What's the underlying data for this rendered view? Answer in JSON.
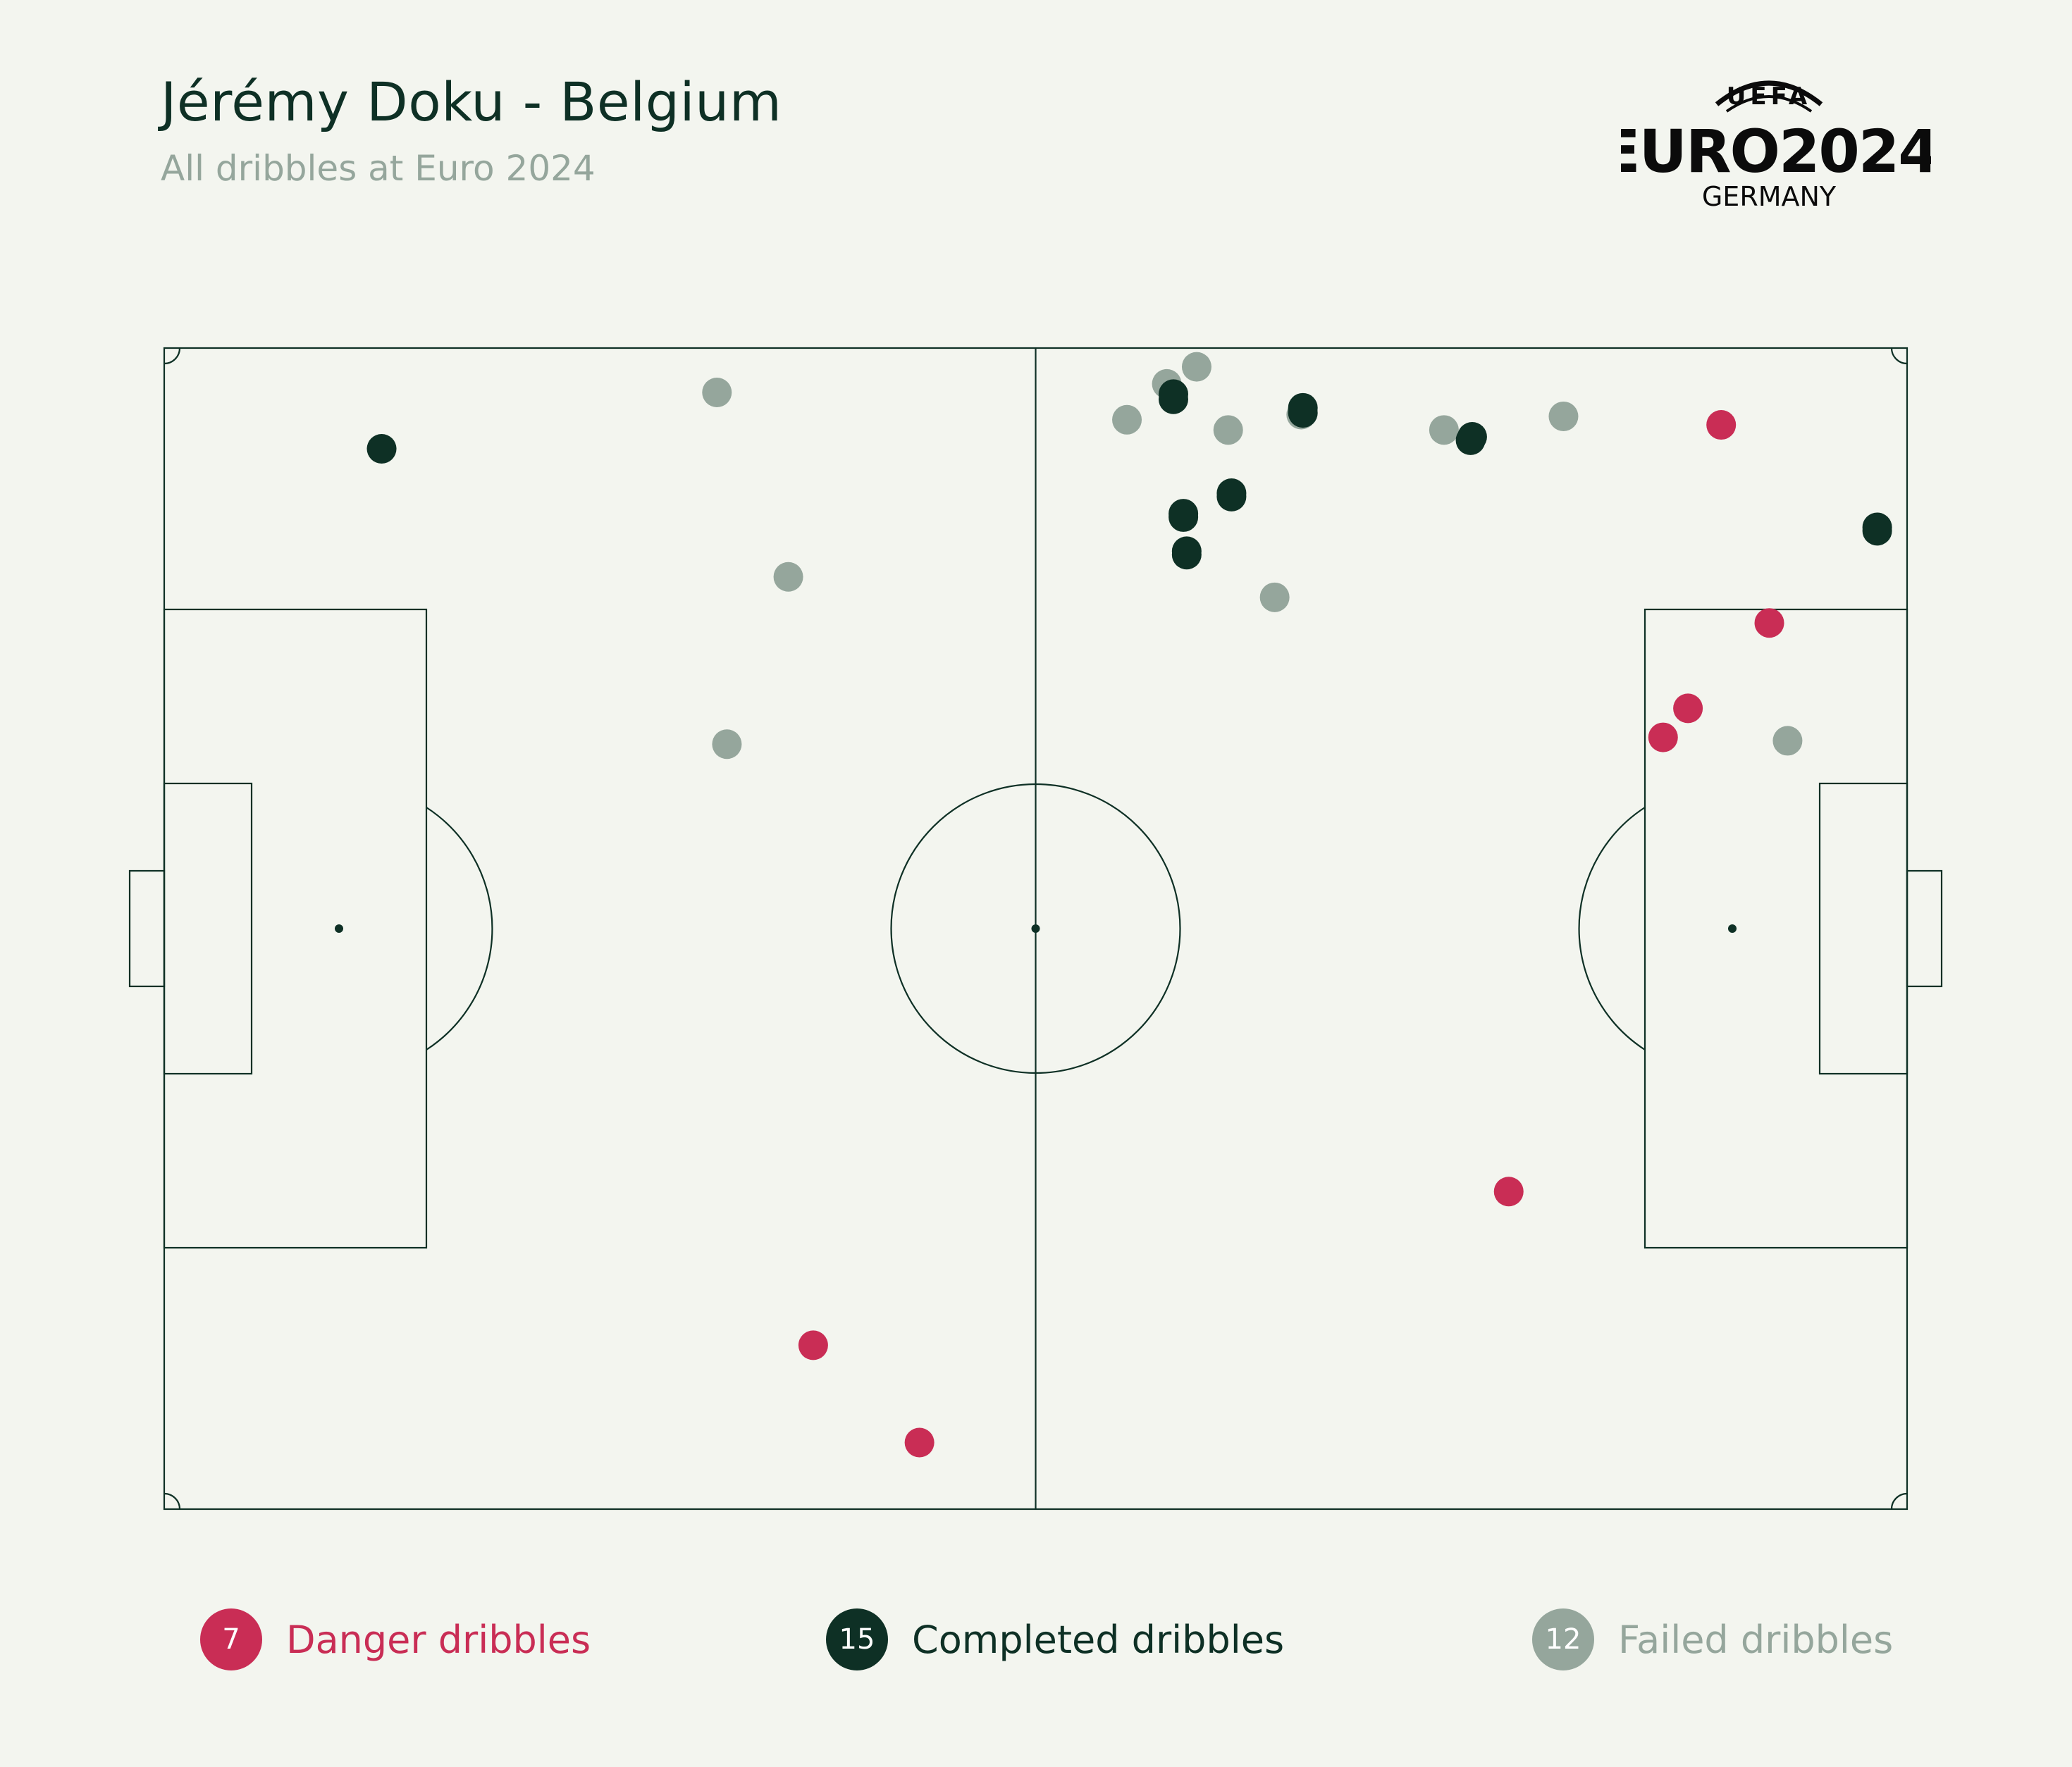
{
  "header": {
    "title": "Jérémy Doku - Belgium",
    "subtitle": "All dribbles at Euro 2024"
  },
  "logo": {
    "uefa": "UEFA",
    "euro": "EURO2024",
    "country": "GERMANY"
  },
  "colors": {
    "background": "#f3f5ef",
    "lines": "#0e3025",
    "danger": "#c92d55",
    "completed": "#0e3025",
    "failed": "#95a69c"
  },
  "legend": [
    {
      "count": "7",
      "label": "Danger dribbles",
      "color": "#c92d55"
    },
    {
      "count": "15",
      "label": "Completed dribbles",
      "color": "#0e3025"
    },
    {
      "count": "12",
      "label": "Failed dribbles",
      "color": "#95a69c"
    }
  ],
  "chart_data": {
    "type": "scatter",
    "x_range": [
      0,
      105
    ],
    "y_range": [
      0,
      68
    ],
    "series": [
      {
        "name": "Danger dribbles",
        "color": "#c92d55",
        "points": [
          [
            93.8,
            63.5
          ],
          [
            96.7,
            51.9
          ],
          [
            91.8,
            46.9
          ],
          [
            90.3,
            45.2
          ],
          [
            81.0,
            18.6
          ],
          [
            39.1,
            9.6
          ],
          [
            45.5,
            3.9
          ]
        ]
      },
      {
        "name": "Completed dribbles",
        "color": "#0e3025",
        "points": [
          [
            13.1,
            62.1
          ],
          [
            60.8,
            65.3
          ],
          [
            68.6,
            64.2
          ],
          [
            78.8,
            62.8
          ],
          [
            64.3,
            59.5
          ],
          [
            61.4,
            58.1
          ],
          [
            61.6,
            55.9
          ],
          [
            103.2,
            57.3
          ],
          [
            68.6,
            64.5
          ],
          [
            60.8,
            65.0
          ],
          [
            64.3,
            59.3
          ],
          [
            78.7,
            62.6
          ],
          [
            61.4,
            58.3
          ],
          [
            61.6,
            56.1
          ],
          [
            103.2,
            57.5
          ]
        ]
      },
      {
        "name": "Failed dribbles",
        "color": "#95a69c",
        "points": [
          [
            33.3,
            65.4
          ],
          [
            37.6,
            54.6
          ],
          [
            33.9,
            44.8
          ],
          [
            58.0,
            63.8
          ],
          [
            60.4,
            65.9
          ],
          [
            62.2,
            66.9
          ],
          [
            64.1,
            63.2
          ],
          [
            68.5,
            64.1
          ],
          [
            77.1,
            63.2
          ],
          [
            84.3,
            64.0
          ],
          [
            66.9,
            53.4
          ],
          [
            97.8,
            45.0
          ]
        ]
      }
    ]
  }
}
